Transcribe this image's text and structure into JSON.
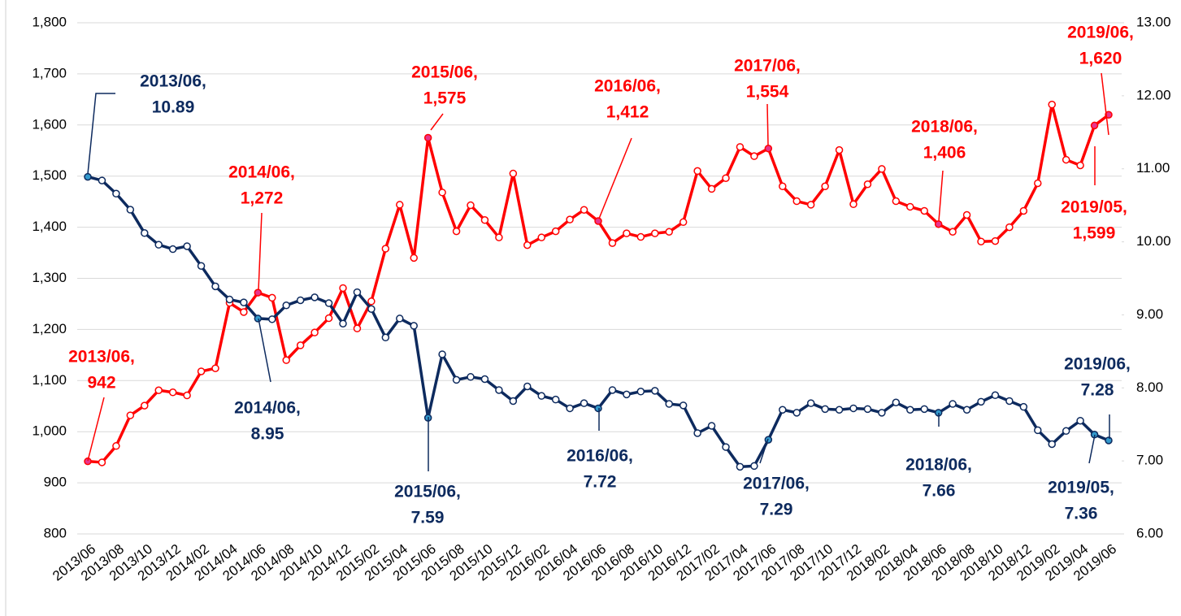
{
  "chart_data": {
    "type": "line",
    "categories": [
      "2013/06",
      null,
      "2013/08",
      null,
      "2013/10",
      null,
      "2013/12",
      null,
      "2014/02",
      null,
      "2014/04",
      null,
      "2014/06",
      null,
      "2014/08",
      null,
      "2014/10",
      null,
      "2014/12",
      null,
      "2015/02",
      null,
      "2015/04",
      null,
      "2015/06",
      null,
      "2015/08",
      null,
      "2015/10",
      null,
      "2015/12",
      null,
      "2016/02",
      null,
      "2016/04",
      null,
      "2016/06",
      null,
      "2016/08",
      null,
      "2016/10",
      null,
      "2016/12",
      null,
      "2017/02",
      null,
      "2017/04",
      null,
      "2017/06",
      null,
      "2017/08",
      null,
      "2017/10",
      null,
      "2017/12",
      null,
      "2018/02",
      null,
      "2018/04",
      null,
      "2018/06",
      null,
      "2018/08",
      null,
      "2018/10",
      null,
      "2018/12",
      null,
      "2019/02",
      null,
      "2019/04",
      null,
      "2019/06"
    ],
    "series": [
      {
        "color": "#ff0000",
        "highlight": "#e8348c",
        "axis": "y",
        "values": [
          942,
          940,
          972,
          1032,
          1051,
          1081,
          1077,
          1071,
          1118,
          1124,
          1252,
          1234,
          1272,
          1262,
          1140,
          1169,
          1194,
          1222,
          1281,
          1202,
          1255,
          1358,
          1444,
          1340,
          1575,
          1468,
          1392,
          1443,
          1414,
          1380,
          1505,
          1365,
          1380,
          1392,
          1415,
          1434,
          1412,
          1369,
          1388,
          1381,
          1388,
          1391,
          1410,
          1510,
          1475,
          1496,
          1557,
          1539,
          1554,
          1480,
          1451,
          1444,
          1480,
          1551,
          1445,
          1484,
          1514,
          1451,
          1440,
          1432,
          1406,
          1391,
          1424,
          1372,
          1373,
          1400,
          1432,
          1486,
          1640,
          1532,
          1521,
          1599,
          1620
        ]
      },
      {
        "color": "#0d2a5e",
        "highlight": "#3399cc",
        "axis": "y2",
        "values": [
          10.89,
          10.84,
          10.66,
          10.44,
          10.12,
          9.96,
          9.9,
          9.94,
          9.67,
          9.39,
          9.21,
          9.17,
          8.95,
          8.94,
          9.13,
          9.2,
          9.24,
          9.16,
          8.88,
          9.31,
          9.08,
          8.69,
          8.95,
          8.85,
          7.59,
          8.46,
          8.11,
          8.15,
          8.12,
          7.97,
          7.82,
          8.02,
          7.89,
          7.84,
          7.72,
          7.79,
          7.72,
          7.97,
          7.91,
          7.95,
          7.96,
          7.78,
          7.76,
          7.38,
          7.48,
          7.19,
          6.92,
          6.93,
          7.29,
          7.7,
          7.66,
          7.79,
          7.71,
          7.7,
          7.72,
          7.71,
          7.66,
          7.8,
          7.7,
          7.71,
          7.66,
          7.78,
          7.7,
          7.81,
          7.9,
          7.82,
          7.74,
          7.42,
          7.23,
          7.41,
          7.55,
          7.36,
          7.28
        ]
      }
    ],
    "ylim": [
      800,
      1800
    ],
    "yticks": [
      {
        "value": 800,
        "label": "800"
      },
      {
        "value": 900,
        "label": "900"
      },
      {
        "value": 1000,
        "label": "1,000"
      },
      {
        "value": 1100,
        "label": "1,100"
      },
      {
        "value": 1200,
        "label": "1,200"
      },
      {
        "value": 1300,
        "label": "1,300"
      },
      {
        "value": 1400,
        "label": "1,400"
      },
      {
        "value": 1500,
        "label": "1,500"
      },
      {
        "value": 1600,
        "label": "1,600"
      },
      {
        "value": 1700,
        "label": "1,700"
      },
      {
        "value": 1800,
        "label": "1,800"
      }
    ],
    "y2lim": [
      6,
      13
    ],
    "y2ticks": [
      {
        "value": 6,
        "label": "6.00"
      },
      {
        "value": 7,
        "label": "7.00"
      },
      {
        "value": 8,
        "label": "8.00"
      },
      {
        "value": 9,
        "label": "9.00"
      },
      {
        "value": 10,
        "label": "10.00"
      },
      {
        "value": 11,
        "label": "11.00"
      },
      {
        "value": 12,
        "label": "12.00"
      },
      {
        "value": 13,
        "label": "13.00"
      }
    ],
    "grid": true,
    "annotations": [
      {
        "color": "#ff0000",
        "lines": [
          "2013/06,",
          "942"
        ]
      },
      {
        "color": "#ff0000",
        "lines": [
          "2014/06,",
          "1,272"
        ]
      },
      {
        "color": "#ff0000",
        "lines": [
          "2015/06,",
          "1,575"
        ]
      },
      {
        "color": "#ff0000",
        "lines": [
          "2016/06,",
          "1,412"
        ]
      },
      {
        "color": "#ff0000",
        "lines": [
          "2017/06,",
          "1,554"
        ]
      },
      {
        "color": "#ff0000",
        "lines": [
          "2018/06,",
          "1,406"
        ]
      },
      {
        "color": "#ff0000",
        "lines": [
          "2019/06,",
          "1,620"
        ]
      },
      {
        "color": "#ff0000",
        "lines": [
          "2019/05,",
          "1,599"
        ]
      },
      {
        "color": "#0d2a5e",
        "lines": [
          "2013/06,",
          "10.89"
        ]
      },
      {
        "color": "#0d2a5e",
        "lines": [
          "2014/06,",
          "8.95"
        ]
      },
      {
        "color": "#0d2a5e",
        "lines": [
          "2015/06,",
          "7.59"
        ]
      },
      {
        "color": "#0d2a5e",
        "lines": [
          "2016/06,",
          "7.72"
        ]
      },
      {
        "color": "#0d2a5e",
        "lines": [
          "2017/06,",
          "7.29"
        ]
      },
      {
        "color": "#0d2a5e",
        "lines": [
          "2018/06,",
          "7.66"
        ]
      },
      {
        "color": "#0d2a5e",
        "lines": [
          "2019/06,",
          "7.28"
        ]
      },
      {
        "color": "#0d2a5e",
        "lines": [
          "2019/05,",
          "7.36"
        ]
      }
    ]
  }
}
